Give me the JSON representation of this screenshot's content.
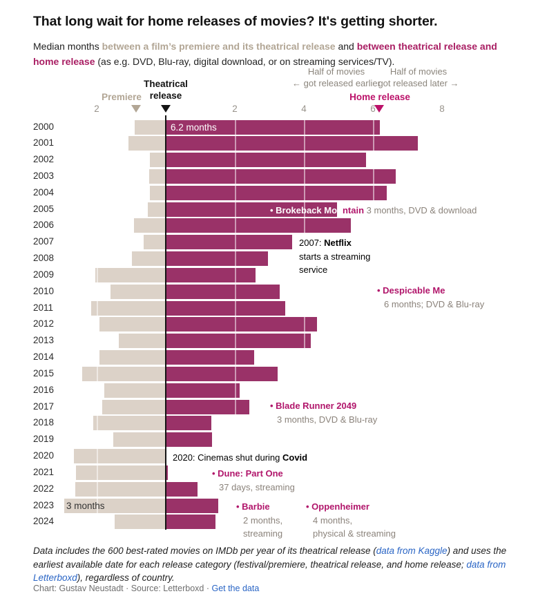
{
  "title": "That long wait for home releases of movies? It's getting shorter.",
  "subtitle": {
    "prefix": "Median months ",
    "premiere_phrase": "between a film’s premiere and its theatrical release",
    "middle": " and ",
    "home_phrase": "between theatrical release and home release",
    "suffix": " (as e.g. DVD, Blu-ray, digital download, or on streaming services/TV)."
  },
  "axis": {
    "half_earlier": [
      "Half of movies",
      "← got released earlier"
    ],
    "half_later": [
      "Half of movies",
      "got released later →"
    ],
    "premiere_label": "Premiere",
    "theatrical_label": "Theatrical release",
    "home_label": "Home release",
    "ticks": [
      "2",
      "2",
      "4",
      "6",
      "8"
    ]
  },
  "chart_data": {
    "type": "bar",
    "orientation": "diverging-horizontal",
    "unit": "months",
    "title": "Median months between premiere, theatrical release and home release by year",
    "categories": [
      2000,
      2001,
      2002,
      2003,
      2004,
      2005,
      2006,
      2007,
      2008,
      2009,
      2010,
      2011,
      2012,
      2013,
      2014,
      2015,
      2016,
      2017,
      2018,
      2019,
      2020,
      2021,
      2022,
      2023,
      2024
    ],
    "series": [
      {
        "name": "Premiere to theatrical release",
        "direction": "left",
        "color": "#dcd2c8",
        "values": [
          0.9,
          1.08,
          0.46,
          0.48,
          0.46,
          0.52,
          0.92,
          0.64,
          0.98,
          2.05,
          1.61,
          2.17,
          1.93,
          1.37,
          1.93,
          2.43,
          1.79,
          1.85,
          2.1,
          1.53,
          2.66,
          2.6,
          2.63,
          2.95,
          1.49
        ]
      },
      {
        "name": "Theatrical release to home release",
        "direction": "right",
        "color": "#9a3268",
        "values": [
          6.2,
          7.3,
          5.8,
          6.65,
          6.4,
          4.95,
          5.35,
          3.65,
          2.95,
          2.6,
          3.3,
          3.45,
          4.38,
          4.2,
          2.55,
          3.23,
          2.13,
          2.42,
          1.31,
          1.33,
          0,
          0.06,
          0.92,
          1.52,
          1.43
        ]
      }
    ],
    "x_axis": {
      "ticks_left_of_zero": [
        2
      ],
      "ticks_right_of_zero": [
        2,
        4,
        6,
        8
      ],
      "zero_meaning": "Theatrical release",
      "grid": true
    },
    "markers": {
      "premiere_median_months": -0.87,
      "home_release_median_months": 6.2
    }
  },
  "annotations": {
    "label_2000": "6.2 months",
    "label_2023": "3 months",
    "brokeback": {
      "name_on_bar": "• Brokeback Mou",
      "name_rest": "ntain",
      "detail": " 3 months, DVD & download"
    },
    "netflix": {
      "line1_prefix": "2007: ",
      "line1_bold": "Netflix",
      "line2": "starts a streaming",
      "line3": "service"
    },
    "despicable": {
      "name": "• Despicable Me",
      "detail": "6 months; DVD & Blu-ray"
    },
    "blade_runner": {
      "name": "• Blade Runner 2049",
      "detail": "3 months, DVD & Blu-ray"
    },
    "covid": {
      "prefix": "2020: Cinemas shut during ",
      "bold": "Covid"
    },
    "dune": {
      "name": "• Dune: Part One",
      "detail": "37 days, streaming"
    },
    "barbie": {
      "name": "• Barbie",
      "detail_line1": "2 months,",
      "detail_line2": "streaming"
    },
    "oppenheimer": {
      "name": "• Oppenheimer",
      "detail_line1": "4 months,",
      "detail_line2": "physical & streaming"
    }
  },
  "footer": {
    "notes_part1": "Data includes the 600 best-rated movies on IMDb per year of its theatrical release (",
    "link_kaggle": "data from Kaggle",
    "notes_part2": ") and uses the earliest available date for each release category (festival/premiere, theatrical release, and home release; ",
    "link_letterboxd": "data from Letterboxd",
    "notes_part3": "), regardless of country.",
    "credit_prefix": "Chart: Gustav Neustadt · Source: Letterboxd · ",
    "credit_link": "Get the data"
  },
  "colors": {
    "magenta_bar": "#9a3268",
    "tan_bar": "#dcd2c8",
    "tan_text": "#b2a695",
    "accent_pink": "#bb1169",
    "annotation_pink": "#b1166b",
    "annotation_gray": "#8b837b",
    "link_blue": "#2a65c5"
  }
}
